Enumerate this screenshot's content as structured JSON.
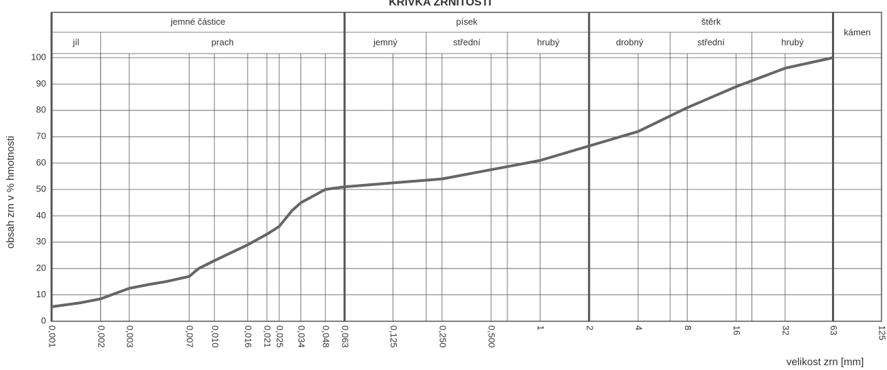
{
  "chart_data": {
    "type": "line",
    "title": "KŘIVKA ZRNITOSTI",
    "x_label": "velikost zrn [mm]",
    "y_label": "obsah zrn v % hmotnosti",
    "log_x": true,
    "grid": true,
    "xlim": [
      0.001,
      125
    ],
    "ylim": [
      0,
      100
    ],
    "yticks": [
      0,
      10,
      20,
      30,
      40,
      50,
      60,
      70,
      80,
      90,
      100
    ],
    "xticks": [
      {
        "value": 0.001,
        "label": "0,001"
      },
      {
        "value": 0.002,
        "label": "0,002"
      },
      {
        "value": 0.003,
        "label": "0,003"
      },
      {
        "value": 0.007,
        "label": "0,007"
      },
      {
        "value": 0.01,
        "label": "0,010"
      },
      {
        "value": 0.016,
        "label": "0,016"
      },
      {
        "value": 0.021,
        "label": "0,021"
      },
      {
        "value": 0.025,
        "label": "0,025"
      },
      {
        "value": 0.034,
        "label": "0,034"
      },
      {
        "value": 0.048,
        "label": "0,048"
      },
      {
        "value": 0.063,
        "label": "0,063"
      },
      {
        "value": 0.125,
        "label": "0,125"
      },
      {
        "value": 0.25,
        "label": "0,250"
      },
      {
        "value": 0.5,
        "label": "0,500"
      },
      1,
      2,
      4,
      8,
      16,
      32,
      63,
      125
    ],
    "zones": [
      {
        "label": "jemné částice",
        "from": 0.001,
        "to": 0.063
      },
      {
        "label": "písek",
        "from": 0.063,
        "to": 2
      },
      {
        "label": "štěrk",
        "from": 2,
        "to": 63
      },
      {
        "label": "kámen",
        "from": 63,
        "to": 125
      }
    ],
    "subzones": [
      {
        "label": "jíl",
        "from": 0.001,
        "to": 0.002
      },
      {
        "label": "prach",
        "from": 0.002,
        "to": 0.063
      },
      {
        "label": "jemný",
        "from": 0.063,
        "to": 0.2
      },
      {
        "label": "střední",
        "from": 0.2,
        "to": 0.63
      },
      {
        "label": "hrubý",
        "from": 0.63,
        "to": 2
      },
      {
        "label": "drobný",
        "from": 2,
        "to": 6.3
      },
      {
        "label": "střední",
        "from": 6.3,
        "to": 20
      },
      {
        "label": "hrubý",
        "from": 20,
        "to": 63
      }
    ],
    "series": [
      {
        "color": "#666666",
        "x": [
          0.001,
          0.0015,
          0.002,
          0.003,
          0.004,
          0.005,
          0.007,
          0.008,
          0.01,
          0.016,
          0.021,
          0.025,
          0.03,
          0.034,
          0.048,
          0.063,
          0.125,
          0.25,
          0.5,
          1,
          2,
          4,
          8,
          16,
          32,
          63
        ],
        "values": [
          5.5,
          7,
          8.5,
          12.5,
          14,
          15,
          17,
          20,
          23,
          29,
          33,
          36,
          42,
          45,
          50,
          51,
          52.5,
          54,
          57.5,
          61,
          66.5,
          72,
          81,
          89,
          96,
          100
        ]
      }
    ]
  }
}
